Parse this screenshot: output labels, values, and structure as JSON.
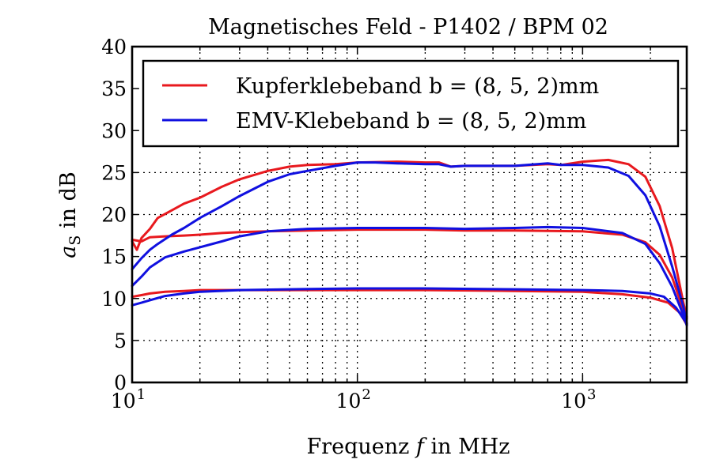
{
  "chart_data": {
    "type": "line",
    "title": "Magnetisches Feld - P1402 / BPM 02",
    "xlabel_text": "Frequenz",
    "xlabel_var": "f",
    "xlabel_unit": "in MHz",
    "ylabel_var": "a",
    "ylabel_sub": "S",
    "ylabel_unit": "in dB",
    "x_scale": "log",
    "xlim": [
      10,
      2900
    ],
    "ylim": [
      0,
      40
    ],
    "x_ticks": [
      {
        "value": 10,
        "base": "10",
        "exp": "1"
      },
      {
        "value": 100,
        "base": "10",
        "exp": "2"
      },
      {
        "value": 1000,
        "base": "10",
        "exp": "3"
      }
    ],
    "y_ticks": [
      "0",
      "5",
      "10",
      "15",
      "20",
      "25",
      "30",
      "35",
      "40"
    ],
    "grid": true,
    "legend_position": "top",
    "legend": [
      {
        "text": "Kupferklebeband b = (8, 5, 2)mm",
        "color": "#e8191e"
      },
      {
        "text": "EMV-Klebeband b = (8, 5, 2)mm",
        "color": "#1010e0"
      }
    ],
    "series": [
      {
        "group": "Kupferklebeband",
        "color": "#e8191e",
        "points": [
          [
            10,
            16.8
          ],
          [
            10.5,
            15.8
          ],
          [
            11,
            17.2
          ],
          [
            12,
            18.3
          ],
          [
            13,
            19.6
          ],
          [
            15,
            20.5
          ],
          [
            17,
            21.3
          ],
          [
            20,
            22.0
          ],
          [
            25,
            23.3
          ],
          [
            30,
            24.2
          ],
          [
            40,
            25.2
          ],
          [
            50,
            25.7
          ],
          [
            60,
            25.9
          ],
          [
            80,
            26.0
          ],
          [
            100,
            26.2
          ],
          [
            150,
            26.3
          ],
          [
            200,
            26.2
          ],
          [
            230,
            26.2
          ],
          [
            260,
            25.7
          ],
          [
            300,
            25.8
          ],
          [
            400,
            25.8
          ],
          [
            500,
            25.8
          ],
          [
            700,
            26.0
          ],
          [
            800,
            25.9
          ],
          [
            1000,
            26.3
          ],
          [
            1300,
            26.5
          ],
          [
            1600,
            26.0
          ],
          [
            1900,
            24.5
          ],
          [
            2200,
            21.0
          ],
          [
            2500,
            16.0
          ],
          [
            2800,
            9.5
          ],
          [
            2900,
            7.8
          ]
        ]
      },
      {
        "group": "Kupferklebeband",
        "color": "#e8191e",
        "points": [
          [
            10,
            17.0
          ],
          [
            11,
            16.8
          ],
          [
            12,
            17.3
          ],
          [
            14,
            17.4
          ],
          [
            17,
            17.5
          ],
          [
            20,
            17.6
          ],
          [
            25,
            17.8
          ],
          [
            30,
            17.9
          ],
          [
            40,
            18.0
          ],
          [
            60,
            18.1
          ],
          [
            100,
            18.2
          ],
          [
            200,
            18.2
          ],
          [
            300,
            18.1
          ],
          [
            500,
            18.1
          ],
          [
            1000,
            18.0
          ],
          [
            1500,
            17.6
          ],
          [
            1900,
            16.7
          ],
          [
            2200,
            15.2
          ],
          [
            2500,
            12.5
          ],
          [
            2800,
            8.6
          ],
          [
            2900,
            7.6
          ]
        ]
      },
      {
        "group": "Kupferklebeband",
        "color": "#e8191e",
        "points": [
          [
            10,
            10.2
          ],
          [
            11,
            10.4
          ],
          [
            12,
            10.6
          ],
          [
            14,
            10.8
          ],
          [
            17,
            10.9
          ],
          [
            20,
            11.0
          ],
          [
            30,
            11.0
          ],
          [
            50,
            11.0
          ],
          [
            100,
            11.0
          ],
          [
            200,
            11.0
          ],
          [
            500,
            10.9
          ],
          [
            1000,
            10.8
          ],
          [
            1500,
            10.5
          ],
          [
            2000,
            10.1
          ],
          [
            2400,
            9.5
          ],
          [
            2700,
            8.3
          ],
          [
            2900,
            6.9
          ]
        ]
      },
      {
        "group": "EMV-Klebeband",
        "color": "#1010e0",
        "points": [
          [
            10,
            13.5
          ],
          [
            11,
            14.8
          ],
          [
            12,
            15.8
          ],
          [
            13,
            16.5
          ],
          [
            15,
            17.6
          ],
          [
            17,
            18.4
          ],
          [
            20,
            19.6
          ],
          [
            25,
            21.0
          ],
          [
            30,
            22.2
          ],
          [
            40,
            23.9
          ],
          [
            50,
            24.8
          ],
          [
            60,
            25.2
          ],
          [
            80,
            25.8
          ],
          [
            100,
            26.2
          ],
          [
            120,
            26.2
          ],
          [
            150,
            26.1
          ],
          [
            200,
            26.0
          ],
          [
            230,
            26.0
          ],
          [
            260,
            25.7
          ],
          [
            300,
            25.8
          ],
          [
            400,
            25.8
          ],
          [
            500,
            25.8
          ],
          [
            700,
            26.1
          ],
          [
            800,
            25.9
          ],
          [
            1000,
            25.9
          ],
          [
            1300,
            25.6
          ],
          [
            1600,
            24.6
          ],
          [
            1900,
            22.3
          ],
          [
            2200,
            18.6
          ],
          [
            2500,
            13.8
          ],
          [
            2800,
            9.0
          ],
          [
            2900,
            7.0
          ]
        ]
      },
      {
        "group": "EMV-Klebeband",
        "color": "#1010e0",
        "points": [
          [
            10,
            11.5
          ],
          [
            11,
            12.6
          ],
          [
            12,
            13.7
          ],
          [
            14,
            14.9
          ],
          [
            17,
            15.6
          ],
          [
            20,
            16.1
          ],
          [
            25,
            16.8
          ],
          [
            30,
            17.4
          ],
          [
            40,
            18.0
          ],
          [
            60,
            18.3
          ],
          [
            100,
            18.4
          ],
          [
            200,
            18.4
          ],
          [
            300,
            18.3
          ],
          [
            500,
            18.4
          ],
          [
            700,
            18.5
          ],
          [
            1000,
            18.4
          ],
          [
            1500,
            17.8
          ],
          [
            1900,
            16.5
          ],
          [
            2200,
            14.2
          ],
          [
            2500,
            11.4
          ],
          [
            2800,
            8.0
          ],
          [
            2900,
            6.8
          ]
        ]
      },
      {
        "group": "EMV-Klebeband",
        "color": "#1010e0",
        "points": [
          [
            10,
            9.2
          ],
          [
            11,
            9.5
          ],
          [
            12,
            9.8
          ],
          [
            14,
            10.3
          ],
          [
            17,
            10.6
          ],
          [
            20,
            10.8
          ],
          [
            30,
            11.0
          ],
          [
            50,
            11.1
          ],
          [
            100,
            11.2
          ],
          [
            200,
            11.2
          ],
          [
            500,
            11.1
          ],
          [
            1000,
            11.0
          ],
          [
            1500,
            10.9
          ],
          [
            2000,
            10.6
          ],
          [
            2300,
            10.2
          ],
          [
            2600,
            8.9
          ],
          [
            2900,
            7.0
          ]
        ]
      }
    ]
  }
}
